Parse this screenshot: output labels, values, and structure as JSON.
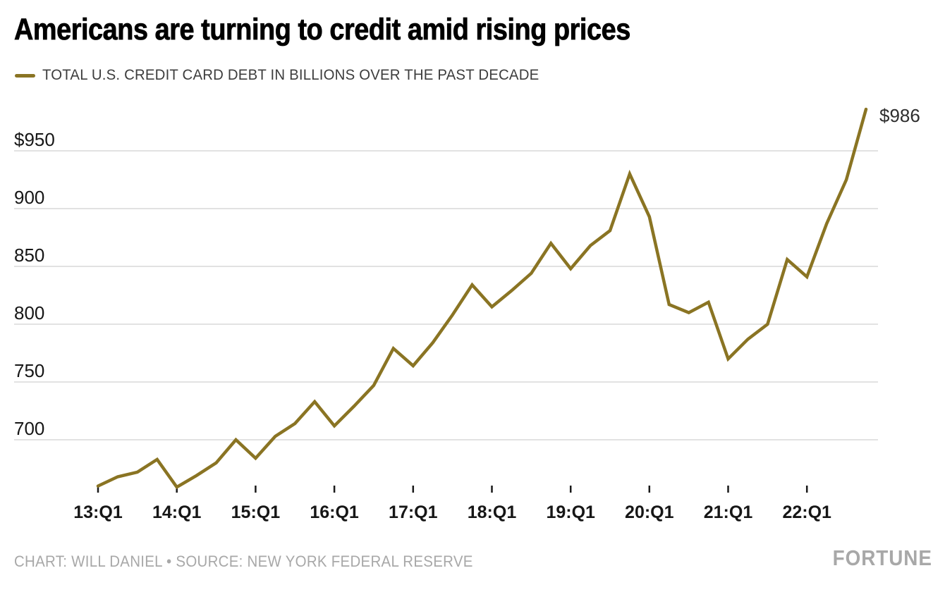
{
  "chart_data": {
    "type": "line",
    "title": "Americans are turning to credit amid rising prices",
    "legend": "TOTAL U.S. CREDIT CARD DEBT IN BILLIONS OVER THE PAST DECADE",
    "legend_position": "top-left",
    "grid": "horizontal",
    "line_color": "#8a7423",
    "x": [
      "13:Q1",
      "13:Q2",
      "13:Q3",
      "13:Q4",
      "14:Q1",
      "14:Q2",
      "14:Q3",
      "14:Q4",
      "15:Q1",
      "15:Q2",
      "15:Q3",
      "15:Q4",
      "16:Q1",
      "16:Q2",
      "16:Q3",
      "16:Q4",
      "17:Q1",
      "17:Q2",
      "17:Q3",
      "17:Q4",
      "18:Q1",
      "18:Q2",
      "18:Q3",
      "18:Q4",
      "19:Q1",
      "19:Q2",
      "19:Q3",
      "19:Q4",
      "20:Q1",
      "20:Q2",
      "20:Q3",
      "20:Q4",
      "21:Q1",
      "21:Q2",
      "21:Q3",
      "21:Q4",
      "22:Q1",
      "22:Q2",
      "22:Q3",
      "22:Q4"
    ],
    "values": [
      660,
      668,
      672,
      683,
      659,
      669,
      680,
      700,
      684,
      703,
      714,
      733,
      712,
      729,
      747,
      779,
      764,
      784,
      808,
      834,
      815,
      829,
      844,
      870,
      848,
      868,
      881,
      930,
      893,
      817,
      810,
      819,
      770,
      787,
      800,
      856,
      841,
      887,
      925,
      986
    ],
    "x_tick_labels": [
      "13:Q1",
      "14:Q1",
      "15:Q1",
      "16:Q1",
      "17:Q1",
      "18:Q1",
      "19:Q1",
      "20:Q1",
      "21:Q1",
      "22:Q1"
    ],
    "y_ticks": [
      {
        "label": "$950",
        "value": 950
      },
      {
        "label": "900",
        "value": 900
      },
      {
        "label": "850",
        "value": 850
      },
      {
        "label": "800",
        "value": 800
      },
      {
        "label": "750",
        "value": 750
      },
      {
        "label": "700",
        "value": 700
      }
    ],
    "ylim": [
      640,
      990
    ],
    "xlabel": "",
    "ylabel": "",
    "end_label": "$986"
  },
  "footer": {
    "credit": "CHART: WILL DANIEL • SOURCE: NEW YORK FEDERAL RESERVE",
    "brand": "FORTUNE"
  },
  "colors": {
    "line": "#8a7423",
    "grid": "#d8d8d8",
    "title_text": "#000000",
    "legend_text": "#3d3d3d",
    "axis_text": "#161616",
    "muted_text": "#a8a8a8",
    "background": "#ffffff"
  }
}
